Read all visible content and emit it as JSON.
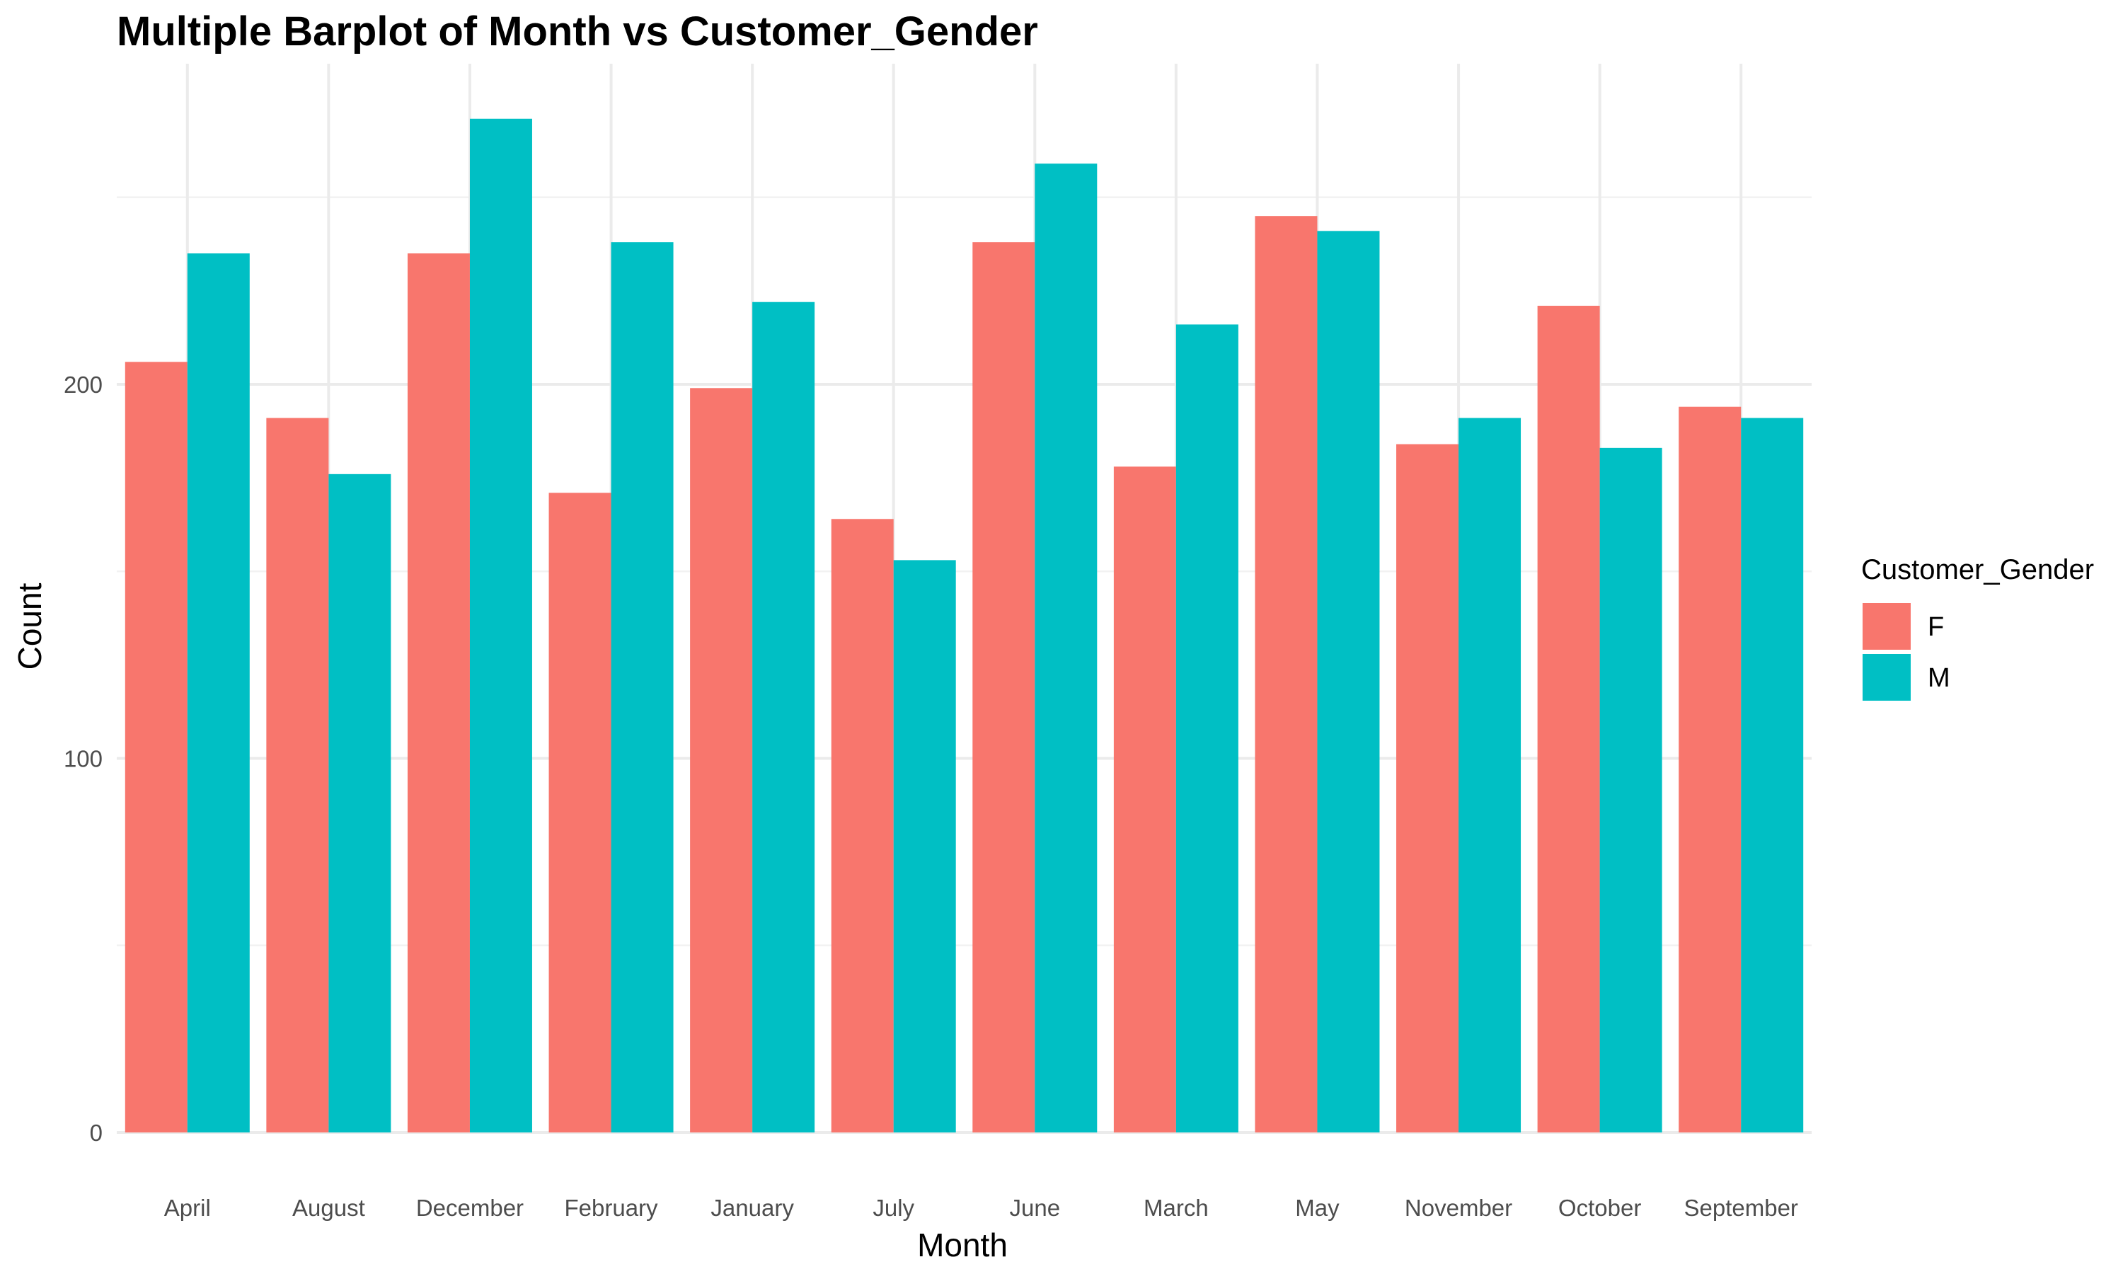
{
  "chart_data": {
    "type": "bar",
    "title": "Multiple Barplot of Month vs Customer_Gender",
    "xlabel": "Month",
    "ylabel": "Count",
    "ylim": [
      0,
      270
    ],
    "y_ticks": [
      0,
      100,
      200
    ],
    "grid": true,
    "legend_placement": "right",
    "legend_title": "Customer_Gender",
    "categories": [
      "April",
      "August",
      "December",
      "February",
      "January",
      "July",
      "June",
      "March",
      "May",
      "November",
      "October",
      "September"
    ],
    "series": [
      {
        "name": "F",
        "color": "#F8766D",
        "values": [
          206,
          191,
          235,
          171,
          199,
          164,
          238,
          178,
          245,
          184,
          221,
          194
        ]
      },
      {
        "name": "M",
        "color": "#00BFC4",
        "values": [
          235,
          176,
          271,
          238,
          222,
          153,
          259,
          216,
          241,
          191,
          183,
          191
        ]
      }
    ]
  }
}
